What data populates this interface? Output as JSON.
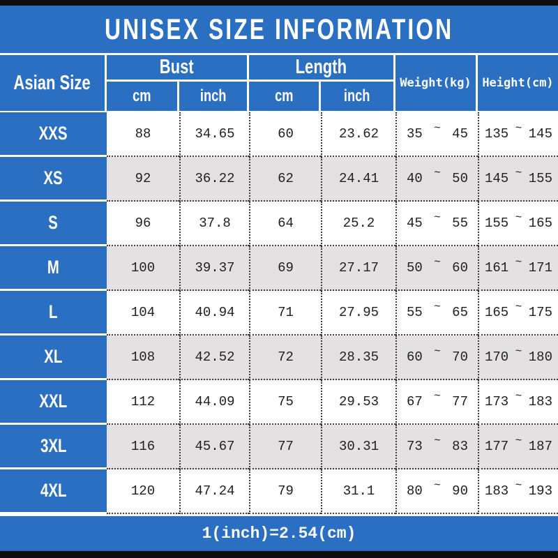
{
  "title": "UNISEX SIZE INFORMATION",
  "header": {
    "col_size": "Asian Size",
    "group_bust": "Bust",
    "group_length": "Length",
    "sub_cm": "cm",
    "sub_inch": "inch",
    "col_weight": "Weight(kg)",
    "col_height": "Height(cm)"
  },
  "misc": {
    "tilde": "~"
  },
  "rows": [
    {
      "size": "XXS",
      "bust_cm": "88",
      "bust_inch": "34.65",
      "length_cm": "60",
      "length_inch": "23.62",
      "weight_min": "35",
      "weight_max": "45",
      "height_min": "135",
      "height_max": "145"
    },
    {
      "size": "XS",
      "bust_cm": "92",
      "bust_inch": "36.22",
      "length_cm": "62",
      "length_inch": "24.41",
      "weight_min": "40",
      "weight_max": "50",
      "height_min": "145",
      "height_max": "155"
    },
    {
      "size": "S",
      "bust_cm": "96",
      "bust_inch": "37.8",
      "length_cm": "64",
      "length_inch": "25.2",
      "weight_min": "45",
      "weight_max": "55",
      "height_min": "155",
      "height_max": "165"
    },
    {
      "size": "M",
      "bust_cm": "100",
      "bust_inch": "39.37",
      "length_cm": "69",
      "length_inch": "27.17",
      "weight_min": "50",
      "weight_max": "60",
      "height_min": "161",
      "height_max": "171"
    },
    {
      "size": "L",
      "bust_cm": "104",
      "bust_inch": "40.94",
      "length_cm": "71",
      "length_inch": "27.95",
      "weight_min": "55",
      "weight_max": "65",
      "height_min": "165",
      "height_max": "175"
    },
    {
      "size": "XL",
      "bust_cm": "108",
      "bust_inch": "42.52",
      "length_cm": "72",
      "length_inch": "28.35",
      "weight_min": "60",
      "weight_max": "70",
      "height_min": "170",
      "height_max": "180"
    },
    {
      "size": "XXL",
      "bust_cm": "112",
      "bust_inch": "44.09",
      "length_cm": "75",
      "length_inch": "29.53",
      "weight_min": "67",
      "weight_max": "77",
      "height_min": "173",
      "height_max": "183"
    },
    {
      "size": "3XL",
      "bust_cm": "116",
      "bust_inch": "45.67",
      "length_cm": "77",
      "length_inch": "30.31",
      "weight_min": "73",
      "weight_max": "83",
      "height_min": "177",
      "height_max": "187"
    },
    {
      "size": "4XL",
      "bust_cm": "120",
      "bust_inch": "47.24",
      "length_cm": "79",
      "length_inch": "31.1",
      "weight_min": "80",
      "weight_max": "90",
      "height_min": "183",
      "height_max": "193"
    }
  ],
  "footer": {
    "note": "1(inch)=2.54(cm)"
  },
  "colors": {
    "blue": "#2b6fc2",
    "row_alt_gray": "#e3e1e2",
    "bar_black": "#0d0d0d"
  },
  "chart_data": {
    "type": "table",
    "title": "UNISEX SIZE INFORMATION",
    "columns": [
      "Asian Size",
      "Bust (cm)",
      "Bust (inch)",
      "Length (cm)",
      "Length (inch)",
      "Weight (kg)",
      "Height (cm)"
    ],
    "rows": [
      [
        "XXS",
        88,
        34.65,
        60,
        23.62,
        "35~45",
        "135~145"
      ],
      [
        "XS",
        92,
        36.22,
        62,
        24.41,
        "40~50",
        "145~155"
      ],
      [
        "S",
        96,
        37.8,
        64,
        25.2,
        "45~55",
        "155~165"
      ],
      [
        "M",
        100,
        39.37,
        69,
        27.17,
        "50~60",
        "161~171"
      ],
      [
        "L",
        104,
        40.94,
        71,
        27.95,
        "55~65",
        "165~175"
      ],
      [
        "XL",
        108,
        42.52,
        72,
        28.35,
        "60~70",
        "170~180"
      ],
      [
        "XXL",
        112,
        44.09,
        75,
        29.53,
        "67~77",
        "173~183"
      ],
      [
        "3XL",
        116,
        45.67,
        77,
        30.31,
        "73~83",
        "177~187"
      ],
      [
        "4XL",
        120,
        47.24,
        79,
        31.1,
        "80~90",
        "183~193"
      ]
    ],
    "footnote": "1(inch)=2.54(cm)"
  }
}
